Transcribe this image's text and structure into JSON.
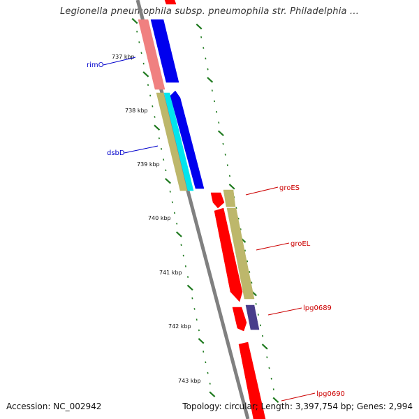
{
  "title": "Legionella pneumophila subsp. pneumophila str. Philadelphia ...",
  "footer": {
    "accession": "Accession: NC_002942",
    "summary": "Topology: circular; Length: 3,397,754 bp; Genes: 2,994"
  },
  "colors": {
    "backbone": "#808080",
    "ticks": "#1f7a1f",
    "label_blue": "#0000cc",
    "label_red": "#cc0000",
    "gene_blue": "#0000ee",
    "gene_red": "#ff0000",
    "gene_pink": "#f08080",
    "gene_khaki": "#bdb76b",
    "gene_cyan": "#00e5ee",
    "gene_purple": "#483d8b"
  },
  "scale_labels": [
    "737 kbp",
    "738 kbp",
    "739 kbp",
    "740 kbp",
    "741 kbp",
    "742 kbp",
    "743 kbp"
  ],
  "gene_labels": [
    {
      "text": "rimO",
      "color": "#0000cc"
    },
    {
      "text": "dsbD",
      "color": "#0000cc"
    },
    {
      "text": "groES",
      "color": "#cc0000"
    },
    {
      "text": "groEL",
      "color": "#cc0000"
    },
    {
      "text": "lpg0689",
      "color": "#cc0000"
    },
    {
      "text": "lpg0690",
      "color": "#cc0000"
    }
  ]
}
